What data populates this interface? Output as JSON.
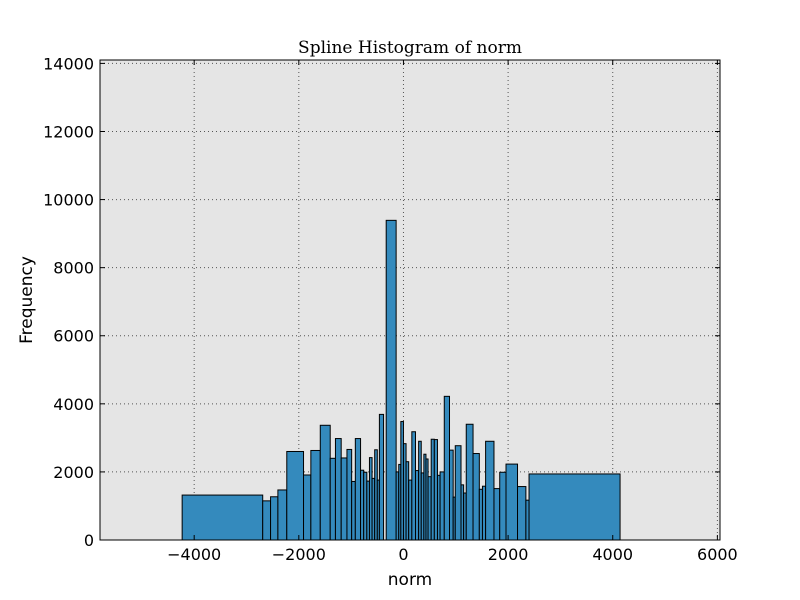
{
  "chart_data": {
    "type": "bar",
    "title": "Spline Histogram of norm",
    "xlabel": "norm",
    "ylabel": "Frequency",
    "xlim": [
      -5800,
      6050
    ],
    "ylim": [
      0,
      14100
    ],
    "xticks": [
      -4000,
      -2000,
      0,
      2000,
      4000,
      6000
    ],
    "xtick_labels": [
      "−4000",
      "−2000",
      "0",
      "2000",
      "4000",
      "6000"
    ],
    "yticks": [
      0,
      2000,
      4000,
      6000,
      8000,
      10000,
      12000,
      14000
    ],
    "ytick_labels": [
      "0",
      "2000",
      "4000",
      "6000",
      "8000",
      "10000",
      "12000",
      "14000"
    ],
    "grid": true,
    "bar_color": "#348abd",
    "plot_background": "#e5e5e5",
    "bins": [
      {
        "x0": -4230,
        "x1": -2690,
        "value": 1320
      },
      {
        "x0": -2690,
        "x1": -2540,
        "value": 1150
      },
      {
        "x0": -2540,
        "x1": -2400,
        "value": 1270
      },
      {
        "x0": -2400,
        "x1": -2230,
        "value": 1470
      },
      {
        "x0": -2230,
        "x1": -1910,
        "value": 2600
      },
      {
        "x0": -1910,
        "x1": -1770,
        "value": 1910
      },
      {
        "x0": -1770,
        "x1": -1590,
        "value": 2630
      },
      {
        "x0": -1590,
        "x1": -1400,
        "value": 3370
      },
      {
        "x0": -1400,
        "x1": -1300,
        "value": 2400
      },
      {
        "x0": -1300,
        "x1": -1190,
        "value": 2980
      },
      {
        "x0": -1190,
        "x1": -1080,
        "value": 2410
      },
      {
        "x0": -1080,
        "x1": -990,
        "value": 2660
      },
      {
        "x0": -990,
        "x1": -920,
        "value": 1720
      },
      {
        "x0": -920,
        "x1": -820,
        "value": 2980
      },
      {
        "x0": -820,
        "x1": -760,
        "value": 2050
      },
      {
        "x0": -760,
        "x1": -700,
        "value": 1990
      },
      {
        "x0": -700,
        "x1": -650,
        "value": 1730
      },
      {
        "x0": -650,
        "x1": -600,
        "value": 2420
      },
      {
        "x0": -600,
        "x1": -550,
        "value": 1810
      },
      {
        "x0": -550,
        "x1": -500,
        "value": 2650
      },
      {
        "x0": -500,
        "x1": -460,
        "value": 1760
      },
      {
        "x0": -460,
        "x1": -380,
        "value": 3690
      },
      {
        "x0": -330,
        "x1": -140,
        "value": 9390
      },
      {
        "x0": -140,
        "x1": -90,
        "value": 2000
      },
      {
        "x0": -90,
        "x1": -50,
        "value": 2220
      },
      {
        "x0": -50,
        "x1": 0,
        "value": 3480
      },
      {
        "x0": 0,
        "x1": 50,
        "value": 2830
      },
      {
        "x0": 50,
        "x1": 100,
        "value": 2300
      },
      {
        "x0": 100,
        "x1": 160,
        "value": 1760
      },
      {
        "x0": 160,
        "x1": 230,
        "value": 3180
      },
      {
        "x0": 230,
        "x1": 290,
        "value": 2040
      },
      {
        "x0": 290,
        "x1": 340,
        "value": 2900
      },
      {
        "x0": 340,
        "x1": 390,
        "value": 1970
      },
      {
        "x0": 390,
        "x1": 430,
        "value": 2520
      },
      {
        "x0": 430,
        "x1": 470,
        "value": 2380
      },
      {
        "x0": 470,
        "x1": 530,
        "value": 1860
      },
      {
        "x0": 530,
        "x1": 590,
        "value": 2960
      },
      {
        "x0": 590,
        "x1": 650,
        "value": 2950
      },
      {
        "x0": 650,
        "x1": 700,
        "value": 1900
      },
      {
        "x0": 700,
        "x1": 780,
        "value": 2000
      },
      {
        "x0": 780,
        "x1": 880,
        "value": 4220
      },
      {
        "x0": 880,
        "x1": 950,
        "value": 2640
      },
      {
        "x0": 950,
        "x1": 990,
        "value": 1260
      },
      {
        "x0": 990,
        "x1": 1100,
        "value": 2770
      },
      {
        "x0": 1100,
        "x1": 1150,
        "value": 1620
      },
      {
        "x0": 1150,
        "x1": 1200,
        "value": 1380
      },
      {
        "x0": 1200,
        "x1": 1330,
        "value": 3400
      },
      {
        "x0": 1330,
        "x1": 1450,
        "value": 2540
      },
      {
        "x0": 1450,
        "x1": 1510,
        "value": 1490
      },
      {
        "x0": 1510,
        "x1": 1570,
        "value": 1580
      },
      {
        "x0": 1570,
        "x1": 1730,
        "value": 2900
      },
      {
        "x0": 1730,
        "x1": 1840,
        "value": 1510
      },
      {
        "x0": 1840,
        "x1": 1960,
        "value": 1990
      },
      {
        "x0": 1960,
        "x1": 2180,
        "value": 2230
      },
      {
        "x0": 2180,
        "x1": 2340,
        "value": 1570
      },
      {
        "x0": 2340,
        "x1": 2400,
        "value": 1170
      },
      {
        "x0": 2400,
        "x1": 4140,
        "value": 1940
      },
      {
        "x0": 4140,
        "x1": 4550,
        "value": 0
      }
    ]
  }
}
